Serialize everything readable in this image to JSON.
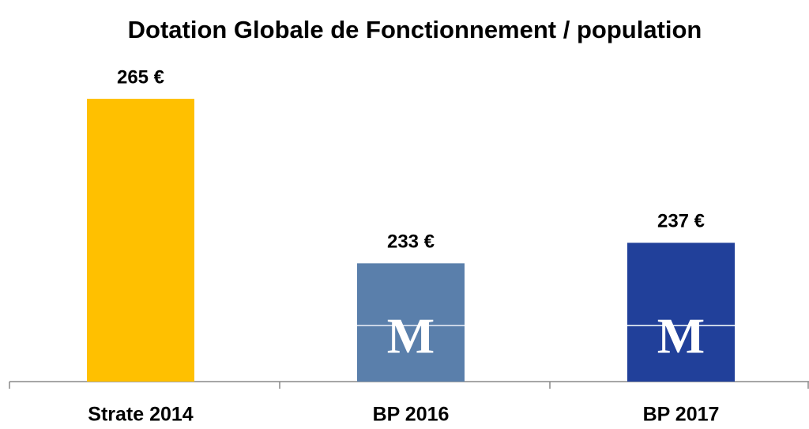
{
  "chart_data": {
    "type": "bar",
    "title": "Dotation Globale de Fonctionnement / population",
    "categories": [
      "Strate 2014",
      "BP 2016",
      "BP 2017"
    ],
    "values": [
      265,
      233,
      237
    ],
    "value_labels": [
      "265 €",
      "233 €",
      "237 €"
    ],
    "colors": [
      "#ffc000",
      "#5a7fab",
      "#21409a"
    ],
    "ylim": [
      210,
      275
    ]
  },
  "logo": "M"
}
